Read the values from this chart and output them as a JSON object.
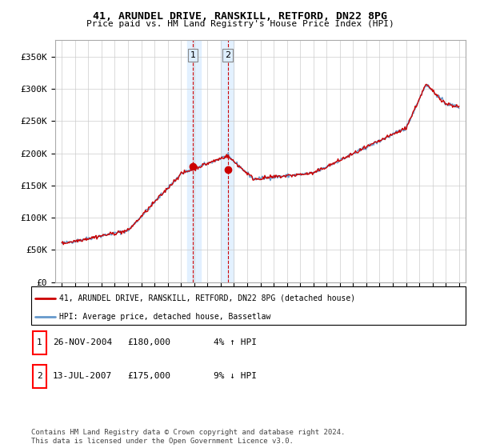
{
  "title": "41, ARUNDEL DRIVE, RANSKILL, RETFORD, DN22 8PG",
  "subtitle": "Price paid vs. HM Land Registry's House Price Index (HPI)",
  "legend_line1": "41, ARUNDEL DRIVE, RANSKILL, RETFORD, DN22 8PG (detached house)",
  "legend_line2": "HPI: Average price, detached house, Bassetlaw",
  "transaction1_label": "1",
  "transaction1_date": "26-NOV-2004",
  "transaction1_price": "£180,000",
  "transaction1_hpi": "4% ↑ HPI",
  "transaction2_label": "2",
  "transaction2_date": "13-JUL-2007",
  "transaction2_price": "£175,000",
  "transaction2_hpi": "9% ↓ HPI",
  "footer": "Contains HM Land Registry data © Crown copyright and database right 2024.\nThis data is licensed under the Open Government Licence v3.0.",
  "red_color": "#cc0000",
  "blue_color": "#6699cc",
  "shade_color": "#ddeeff",
  "ylim": [
    0,
    375000
  ],
  "yticks": [
    0,
    50000,
    100000,
    150000,
    200000,
    250000,
    300000,
    350000
  ],
  "ytick_labels": [
    "£0",
    "£50K",
    "£100K",
    "£150K",
    "£200K",
    "£250K",
    "£300K",
    "£350K"
  ],
  "transaction1_x": 2004.9,
  "transaction1_y": 180000,
  "transaction2_x": 2007.54,
  "transaction2_y": 175000,
  "shade1_xmin": 2004.5,
  "shade1_xmax": 2005.5,
  "shade2_xmin": 2007.0,
  "shade2_xmax": 2008.0,
  "xlim": [
    1994.5,
    2025.5
  ],
  "xticks": [
    1995,
    1996,
    1997,
    1998,
    1999,
    2000,
    2001,
    2002,
    2003,
    2004,
    2005,
    2006,
    2007,
    2008,
    2009,
    2010,
    2011,
    2012,
    2013,
    2014,
    2015,
    2016,
    2017,
    2018,
    2019,
    2020,
    2021,
    2022,
    2023,
    2024,
    2025
  ]
}
